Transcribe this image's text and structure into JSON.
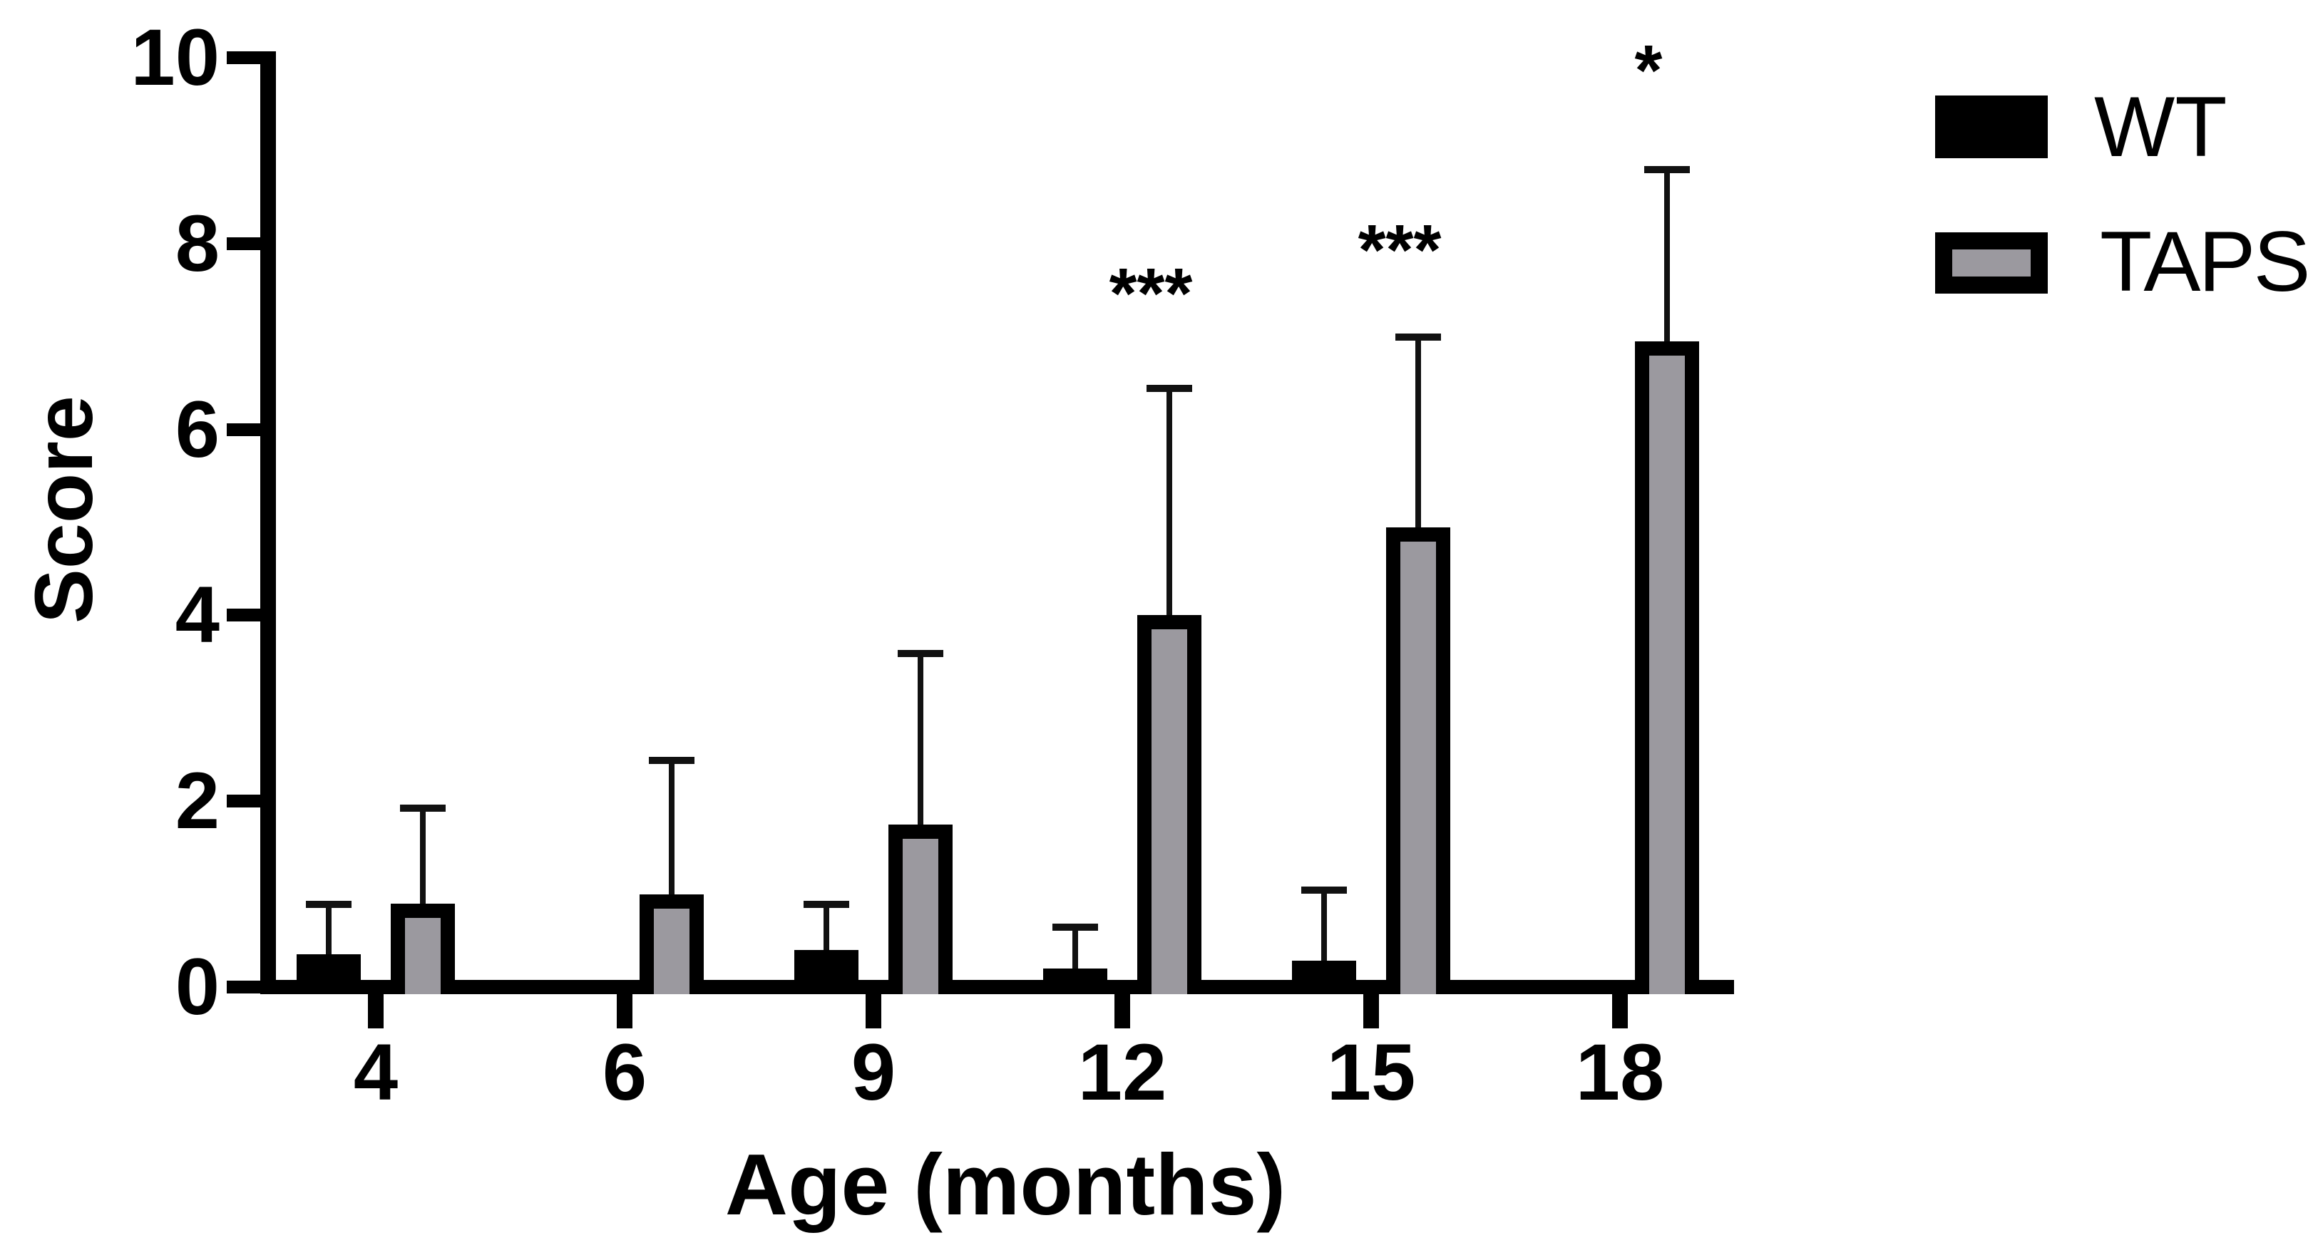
{
  "chart_data": {
    "type": "bar",
    "title": "",
    "xlabel": "Age (months)",
    "ylabel": "Score",
    "categories": [
      "4",
      "6",
      "9",
      "12",
      "15",
      "18"
    ],
    "y_ticks": [
      "0",
      "2",
      "4",
      "6",
      "8",
      "10"
    ],
    "ylim": [
      0,
      10
    ],
    "grid": false,
    "legend_position": "top-right",
    "series": [
      {
        "name": "WT",
        "fill": "#000000",
        "values": [
          0.35,
          0,
          0.4,
          0.2,
          0.28,
          0
        ],
        "errors_plus": [
          0.55,
          null,
          0.5,
          0.45,
          0.77,
          null
        ]
      },
      {
        "name": "TAPS",
        "fill": "#9b999f",
        "border": "#000000",
        "values": [
          0.9,
          1.0,
          1.75,
          4.0,
          4.95,
          6.95
        ],
        "errors_plus": [
          1.03,
          1.45,
          1.85,
          2.45,
          2.05,
          1.85
        ]
      }
    ],
    "significance": [
      {
        "category": "12",
        "label": "***",
        "y_value": 7.6
      },
      {
        "category": "15",
        "label": "***",
        "y_value": 8.07
      },
      {
        "category": "18",
        "label": "*",
        "y_value": 10.0
      }
    ]
  }
}
